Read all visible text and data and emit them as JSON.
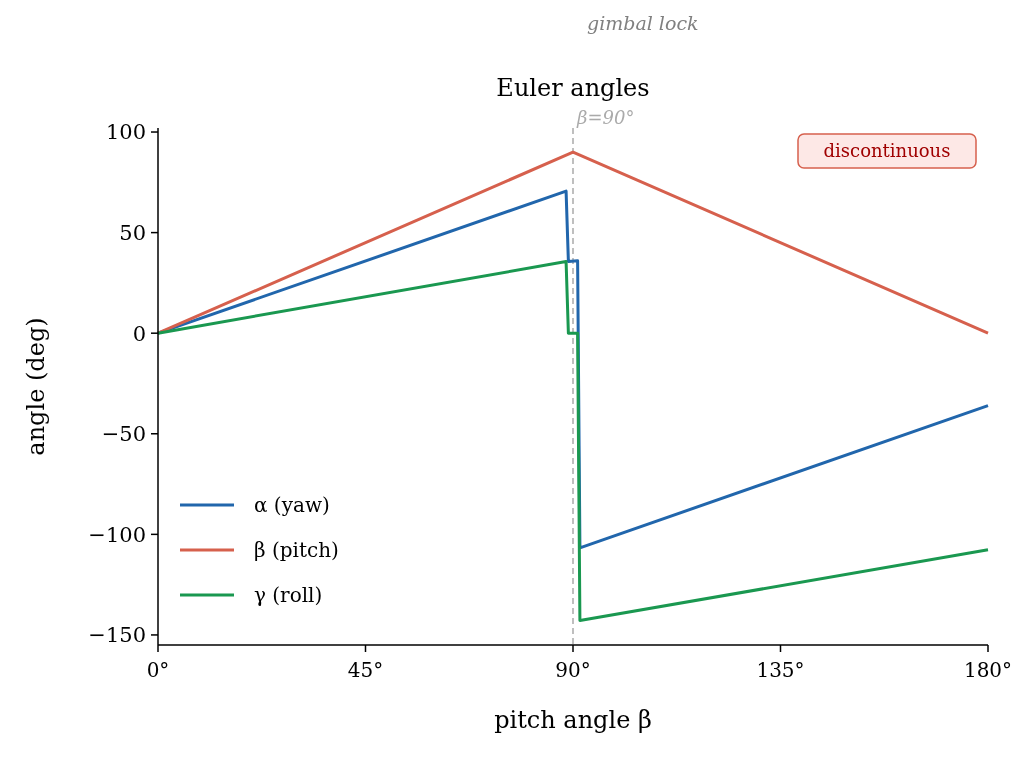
{
  "chart_data": {
    "type": "line",
    "title": "Euler angles",
    "xlabel": "pitch angle β",
    "ylabel": "angle (deg)",
    "xlim": [
      0,
      180
    ],
    "xticks": [
      {
        "value": 0,
        "label": "0°"
      },
      {
        "value": 45,
        "label": "45°"
      },
      {
        "value": 90,
        "label": "90°"
      },
      {
        "value": 135,
        "label": "135°"
      },
      {
        "value": 180,
        "label": "180°"
      }
    ],
    "ylim": [
      -155,
      102
    ],
    "yticks": [
      -150,
      -100,
      -50,
      0,
      50,
      100
    ],
    "series": [
      {
        "name": "α (yaw)",
        "color": "#2166ac",
        "x": [
          0,
          88.5,
          89,
          91,
          91.5,
          180
        ],
        "values": [
          0,
          70.6,
          35.6,
          36,
          -106.7,
          -36
        ]
      },
      {
        "name": "β (pitch)",
        "color": "#d6604d",
        "x": [
          0,
          90,
          180
        ],
        "values": [
          0,
          90,
          0
        ]
      },
      {
        "name": "γ (roll)",
        "color": "#1a9850",
        "x": [
          0,
          88.5,
          89,
          91,
          91.5,
          180
        ],
        "values": [
          0,
          35.6,
          0,
          0,
          -142.8,
          -107.7
        ]
      }
    ],
    "ref_lines": [
      {
        "axis": "x",
        "value": 90,
        "label": "β=90°",
        "color": "#aaaaaa",
        "line_style": "dashed"
      }
    ],
    "annotations": [
      "gimbal lock",
      "discontinuous"
    ],
    "legend": "bottom left",
    "grid": false,
    "marker": "none",
    "line_style": "solid"
  }
}
